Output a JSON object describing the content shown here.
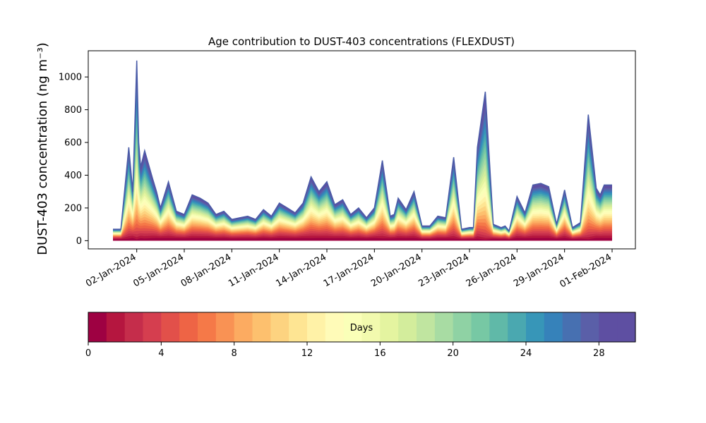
{
  "chart_data": {
    "type": "area",
    "title": "Age contribution to DUST-403 concentrations (FLEXDUST)",
    "ylabel": "DUST-403 concentration (ng m⁻³)",
    "xlabel": "",
    "stacked": true,
    "grid": false,
    "x_range": [
      "2023-12-31T12:00",
      "2024-02-01T00:00"
    ],
    "ylim": [
      -50,
      1160
    ],
    "yticks": [
      0,
      200,
      400,
      600,
      800,
      1000
    ],
    "xticks": [
      "02-Jan-2024",
      "05-Jan-2024",
      "08-Jan-2024",
      "11-Jan-2024",
      "14-Jan-2024",
      "17-Jan-2024",
      "20-Jan-2024",
      "23-Jan-2024",
      "26-Jan-2024",
      "29-Jan-2024",
      "01-Feb-2024"
    ],
    "total_series": {
      "x": [
        "2023-12-31T12:00",
        "2024-01-01T00:00",
        "2024-01-01T12:00",
        "2024-01-01T18:00",
        "2024-01-02T00:00",
        "2024-01-02T03:00",
        "2024-01-02T06:00",
        "2024-01-02T12:00",
        "2024-01-03T00:00",
        "2024-01-03T06:00",
        "2024-01-03T12:00",
        "2024-01-04T00:00",
        "2024-01-04T12:00",
        "2024-01-05T00:00",
        "2024-01-05T12:00",
        "2024-01-06T00:00",
        "2024-01-06T12:00",
        "2024-01-07T00:00",
        "2024-01-07T12:00",
        "2024-01-08T00:00",
        "2024-01-08T12:00",
        "2024-01-09T00:00",
        "2024-01-09T12:00",
        "2024-01-10T00:00",
        "2024-01-10T12:00",
        "2024-01-11T00:00",
        "2024-01-11T12:00",
        "2024-01-12T00:00",
        "2024-01-12T12:00",
        "2024-01-13T00:00",
        "2024-01-13T12:00",
        "2024-01-14T00:00",
        "2024-01-14T12:00",
        "2024-01-15T00:00",
        "2024-01-15T12:00",
        "2024-01-16T00:00",
        "2024-01-16T12:00",
        "2024-01-17T00:00",
        "2024-01-17T12:00",
        "2024-01-18T00:00",
        "2024-01-18T06:00",
        "2024-01-18T12:00",
        "2024-01-19T00:00",
        "2024-01-19T12:00",
        "2024-01-20T00:00",
        "2024-01-20T12:00",
        "2024-01-21T00:00",
        "2024-01-21T12:00",
        "2024-01-22T00:00",
        "2024-01-22T12:00",
        "2024-01-23T00:00",
        "2024-01-23T06:00",
        "2024-01-23T12:00",
        "2024-01-24T00:00",
        "2024-01-24T12:00",
        "2024-01-25T00:00",
        "2024-01-25T06:00",
        "2024-01-25T12:00",
        "2024-01-26T00:00",
        "2024-01-26T12:00",
        "2024-01-27T00:00",
        "2024-01-27T12:00",
        "2024-01-28T00:00",
        "2024-01-28T12:00",
        "2024-01-29T00:00",
        "2024-01-29T12:00",
        "2024-01-30T00:00",
        "2024-01-30T12:00",
        "2024-01-31T00:00",
        "2024-01-31T06:00",
        "2024-01-31T12:00",
        "2024-02-01T00:00"
      ],
      "values": [
        70,
        70,
        570,
        300,
        1100,
        600,
        450,
        550,
        380,
        300,
        200,
        360,
        180,
        160,
        280,
        260,
        230,
        160,
        180,
        130,
        140,
        150,
        130,
        190,
        150,
        230,
        200,
        170,
        230,
        390,
        300,
        360,
        220,
        250,
        160,
        200,
        140,
        200,
        490,
        150,
        160,
        260,
        190,
        300,
        90,
        90,
        150,
        140,
        510,
        70,
        80,
        80,
        570,
        910,
        100,
        80,
        90,
        60,
        270,
        170,
        340,
        350,
        330,
        100,
        310,
        80,
        110,
        770,
        320,
        280,
        340,
        340
      ]
    },
    "colorbar": {
      "label": "Days",
      "range": [
        0,
        30
      ],
      "ticks": [
        0,
        4,
        8,
        12,
        16,
        20,
        24,
        28
      ],
      "colormap": "Spectral",
      "colors": [
        "#9e0142",
        "#b5163f",
        "#c52d4b",
        "#d53e4f",
        "#e2504a",
        "#ee6445",
        "#f57948",
        "#f99254",
        "#fcab61",
        "#fdc06e",
        "#fdd380",
        "#fee593",
        "#fff2a7",
        "#fffbb8",
        "#faffb8",
        "#f2faae",
        "#e4f4a0",
        "#d3ed9c",
        "#c0e5a0",
        "#a8dca3",
        "#8fd2a4",
        "#77c8a4",
        "#60b9a8",
        "#4aa8b0",
        "#3796b8",
        "#3682ba",
        "#4770b1",
        "#5a5fa8",
        "#5e4fa2",
        "#5e4fa2"
      ]
    }
  }
}
